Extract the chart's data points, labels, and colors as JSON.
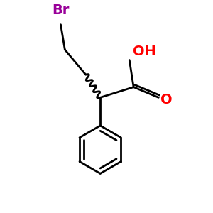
{
  "background_color": "#ffffff",
  "bond_color": "#000000",
  "br_color": "#990099",
  "oh_color": "#ff0000",
  "o_color": "#ff0000",
  "figsize": [
    3.0,
    3.0
  ],
  "dpi": 100,
  "xlim": [
    0,
    10
  ],
  "ylim": [
    0,
    10
  ]
}
